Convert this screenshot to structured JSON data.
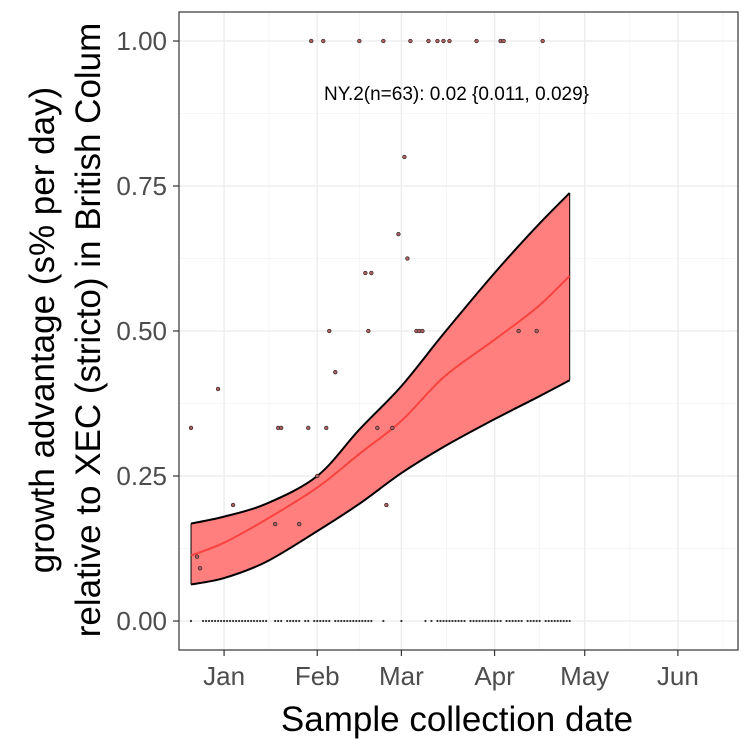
{
  "chart_data": {
    "type": "scatter",
    "xlabel": "Sample collection date",
    "ylabel_line1": "growth advantage (s% per day)",
    "ylabel_line2": "relative to XEC (stricto) in British Colum",
    "annotation": "NY.2(n=63): 0.02 {0.011, 0.029}",
    "x_ticks": [
      {
        "date": "2025-01-01",
        "label": "Jan"
      },
      {
        "date": "2025-02-01",
        "label": "Feb"
      },
      {
        "date": "2025-03-01",
        "label": "Mar"
      },
      {
        "date": "2025-04-01",
        "label": "Apr"
      },
      {
        "date": "2025-05-01",
        "label": "May"
      },
      {
        "date": "2025-06-01",
        "label": "Jun"
      }
    ],
    "y_ticks": [
      {
        "value": 0,
        "label": "0.00"
      },
      {
        "value": 0.25,
        "label": "0.25"
      },
      {
        "value": 0.5,
        "label": "0.50"
      },
      {
        "value": 0.75,
        "label": "0.75"
      },
      {
        "value": 1,
        "label": "1.00"
      }
    ],
    "xlim": [
      "2024-12-17",
      "2025-06-21"
    ],
    "ylim": [
      -0.05,
      1.05
    ],
    "grid": true,
    "colors": {
      "ribbon_fill": "#ff7f7f",
      "fit_line": "#f8433f",
      "ribbon_edge": "#000000",
      "point_fill": "#b46060"
    },
    "fit": [
      {
        "x": "2024-12-21",
        "y": 0.113,
        "lo": 0.063,
        "hi": 0.168
      },
      {
        "x": "2025-01-01",
        "y": 0.135,
        "lo": 0.074,
        "hi": 0.18
      },
      {
        "x": "2025-01-15",
        "y": 0.175,
        "lo": 0.102,
        "hi": 0.202
      },
      {
        "x": "2025-02-01",
        "y": 0.23,
        "lo": 0.155,
        "hi": 0.25
      },
      {
        "x": "2025-02-15",
        "y": 0.288,
        "lo": 0.202,
        "hi": 0.33
      },
      {
        "x": "2025-03-01",
        "y": 0.345,
        "lo": 0.255,
        "hi": 0.405
      },
      {
        "x": "2025-03-15",
        "y": 0.42,
        "lo": 0.3,
        "hi": 0.495
      },
      {
        "x": "2025-04-01",
        "y": 0.485,
        "lo": 0.348,
        "hi": 0.6
      },
      {
        "x": "2025-04-15",
        "y": 0.54,
        "lo": 0.385,
        "hi": 0.68
      },
      {
        "x": "2025-04-26",
        "y": 0.595,
        "lo": 0.415,
        "hi": 0.738
      }
    ],
    "points": [
      {
        "x": "2024-12-21",
        "y": 0.333
      },
      {
        "x": "2024-12-23",
        "y": 0.111
      },
      {
        "x": "2024-12-24",
        "y": 0.091
      },
      {
        "x": "2024-12-30",
        "y": 0.4
      },
      {
        "x": "2025-01-04",
        "y": 0.2
      },
      {
        "x": "2025-01-18",
        "y": 0.167
      },
      {
        "x": "2025-01-19",
        "y": 0.333
      },
      {
        "x": "2025-01-20",
        "y": 0.333
      },
      {
        "x": "2025-01-26",
        "y": 0.167
      },
      {
        "x": "2025-01-29",
        "y": 0.333
      },
      {
        "x": "2025-01-30",
        "y": 1.0
      },
      {
        "x": "2025-02-01",
        "y": 0.25
      },
      {
        "x": "2025-02-03",
        "y": 1.0
      },
      {
        "x": "2025-02-04",
        "y": 0.333
      },
      {
        "x": "2025-02-05",
        "y": 0.5
      },
      {
        "x": "2025-02-07",
        "y": 0.429
      },
      {
        "x": "2025-02-15",
        "y": 1.0
      },
      {
        "x": "2025-02-17",
        "y": 0.6
      },
      {
        "x": "2025-02-18",
        "y": 0.5
      },
      {
        "x": "2025-02-19",
        "y": 0.6
      },
      {
        "x": "2025-02-21",
        "y": 0.333
      },
      {
        "x": "2025-02-23",
        "y": 1.0
      },
      {
        "x": "2025-02-24",
        "y": 0.2
      },
      {
        "x": "2025-02-26",
        "y": 0.333
      },
      {
        "x": "2025-02-28",
        "y": 0.667
      },
      {
        "x": "2025-03-02",
        "y": 0.8
      },
      {
        "x": "2025-03-03",
        "y": 0.625
      },
      {
        "x": "2025-03-04",
        "y": 1.0
      },
      {
        "x": "2025-03-06",
        "y": 0.5
      },
      {
        "x": "2025-03-07",
        "y": 0.5
      },
      {
        "x": "2025-03-08",
        "y": 0.5
      },
      {
        "x": "2025-03-10",
        "y": 1.0
      },
      {
        "x": "2025-03-13",
        "y": 1.0
      },
      {
        "x": "2025-03-15",
        "y": 1.0
      },
      {
        "x": "2025-03-17",
        "y": 1.0
      },
      {
        "x": "2025-03-26",
        "y": 1.0
      },
      {
        "x": "2025-04-03",
        "y": 1.0
      },
      {
        "x": "2025-04-04",
        "y": 1.0
      },
      {
        "x": "2025-04-09",
        "y": 0.5
      },
      {
        "x": "2025-04-15",
        "y": 0.5
      },
      {
        "x": "2025-04-17",
        "y": 1.0
      },
      {
        "x": "2024-12-21",
        "y": 0
      },
      {
        "x": "2024-12-25",
        "y": 0
      },
      {
        "x": "2024-12-26",
        "y": 0
      },
      {
        "x": "2024-12-27",
        "y": 0
      },
      {
        "x": "2024-12-28",
        "y": 0
      },
      {
        "x": "2024-12-29",
        "y": 0
      },
      {
        "x": "2024-12-30",
        "y": 0
      },
      {
        "x": "2024-12-31",
        "y": 0
      },
      {
        "x": "2025-01-01",
        "y": 0
      },
      {
        "x": "2025-01-02",
        "y": 0
      },
      {
        "x": "2025-01-03",
        "y": 0
      },
      {
        "x": "2025-01-04",
        "y": 0
      },
      {
        "x": "2025-01-05",
        "y": 0
      },
      {
        "x": "2025-01-06",
        "y": 0
      },
      {
        "x": "2025-01-07",
        "y": 0
      },
      {
        "x": "2025-01-08",
        "y": 0
      },
      {
        "x": "2025-01-09",
        "y": 0
      },
      {
        "x": "2025-01-10",
        "y": 0
      },
      {
        "x": "2025-01-11",
        "y": 0
      },
      {
        "x": "2025-01-12",
        "y": 0
      },
      {
        "x": "2025-01-13",
        "y": 0
      },
      {
        "x": "2025-01-14",
        "y": 0
      },
      {
        "x": "2025-01-15",
        "y": 0
      },
      {
        "x": "2025-01-18",
        "y": 0
      },
      {
        "x": "2025-01-19",
        "y": 0
      },
      {
        "x": "2025-01-20",
        "y": 0
      },
      {
        "x": "2025-01-22",
        "y": 0
      },
      {
        "x": "2025-01-23",
        "y": 0
      },
      {
        "x": "2025-01-24",
        "y": 0
      },
      {
        "x": "2025-01-25",
        "y": 0
      },
      {
        "x": "2025-01-26",
        "y": 0
      },
      {
        "x": "2025-01-28",
        "y": 0
      },
      {
        "x": "2025-01-29",
        "y": 0
      },
      {
        "x": "2025-01-31",
        "y": 0
      },
      {
        "x": "2025-02-01",
        "y": 0
      },
      {
        "x": "2025-02-02",
        "y": 0
      },
      {
        "x": "2025-02-03",
        "y": 0
      },
      {
        "x": "2025-02-04",
        "y": 0
      },
      {
        "x": "2025-02-05",
        "y": 0
      },
      {
        "x": "2025-02-07",
        "y": 0
      },
      {
        "x": "2025-02-08",
        "y": 0
      },
      {
        "x": "2025-02-09",
        "y": 0
      },
      {
        "x": "2025-02-10",
        "y": 0
      },
      {
        "x": "2025-02-11",
        "y": 0
      },
      {
        "x": "2025-02-12",
        "y": 0
      },
      {
        "x": "2025-02-13",
        "y": 0
      },
      {
        "x": "2025-02-14",
        "y": 0
      },
      {
        "x": "2025-02-15",
        "y": 0
      },
      {
        "x": "2025-02-16",
        "y": 0
      },
      {
        "x": "2025-02-17",
        "y": 0
      },
      {
        "x": "2025-02-18",
        "y": 0
      },
      {
        "x": "2025-02-19",
        "y": 0
      },
      {
        "x": "2025-02-23",
        "y": 0
      },
      {
        "x": "2025-03-01",
        "y": 0
      },
      {
        "x": "2025-03-09",
        "y": 0
      },
      {
        "x": "2025-03-11",
        "y": 0
      },
      {
        "x": "2025-03-13",
        "y": 0
      },
      {
        "x": "2025-03-14",
        "y": 0
      },
      {
        "x": "2025-03-15",
        "y": 0
      },
      {
        "x": "2025-03-16",
        "y": 0
      },
      {
        "x": "2025-03-17",
        "y": 0
      },
      {
        "x": "2025-03-18",
        "y": 0
      },
      {
        "x": "2025-03-19",
        "y": 0
      },
      {
        "x": "2025-03-20",
        "y": 0
      },
      {
        "x": "2025-03-21",
        "y": 0
      },
      {
        "x": "2025-03-22",
        "y": 0
      },
      {
        "x": "2025-03-24",
        "y": 0
      },
      {
        "x": "2025-03-25",
        "y": 0
      },
      {
        "x": "2025-03-26",
        "y": 0
      },
      {
        "x": "2025-03-27",
        "y": 0
      },
      {
        "x": "2025-03-28",
        "y": 0
      },
      {
        "x": "2025-03-29",
        "y": 0
      },
      {
        "x": "2025-03-30",
        "y": 0
      },
      {
        "x": "2025-03-31",
        "y": 0
      },
      {
        "x": "2025-04-01",
        "y": 0
      },
      {
        "x": "2025-04-02",
        "y": 0
      },
      {
        "x": "2025-04-03",
        "y": 0
      },
      {
        "x": "2025-04-05",
        "y": 0
      },
      {
        "x": "2025-04-06",
        "y": 0
      },
      {
        "x": "2025-04-07",
        "y": 0
      },
      {
        "x": "2025-04-08",
        "y": 0
      },
      {
        "x": "2025-04-09",
        "y": 0
      },
      {
        "x": "2025-04-10",
        "y": 0
      },
      {
        "x": "2025-04-12",
        "y": 0
      },
      {
        "x": "2025-04-13",
        "y": 0
      },
      {
        "x": "2025-04-14",
        "y": 0
      },
      {
        "x": "2025-04-15",
        "y": 0
      },
      {
        "x": "2025-04-16",
        "y": 0
      },
      {
        "x": "2025-04-18",
        "y": 0
      },
      {
        "x": "2025-04-19",
        "y": 0
      },
      {
        "x": "2025-04-20",
        "y": 0
      },
      {
        "x": "2025-04-21",
        "y": 0
      },
      {
        "x": "2025-04-22",
        "y": 0
      },
      {
        "x": "2025-04-23",
        "y": 0
      },
      {
        "x": "2025-04-24",
        "y": 0
      },
      {
        "x": "2025-04-25",
        "y": 0
      },
      {
        "x": "2025-04-26",
        "y": 0
      }
    ]
  }
}
